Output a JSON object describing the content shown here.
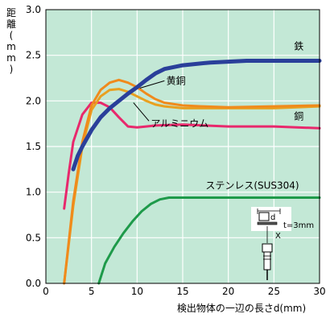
{
  "chart_data": {
    "type": "line",
    "xlabel": "検出物体の一辺の長さd(mm)",
    "ylabel_chars": [
      "距",
      "離",
      "(",
      "m",
      "m",
      ")"
    ],
    "x_ticks": [
      0,
      5,
      10,
      15,
      20,
      25,
      30
    ],
    "y_ticks": [
      "0.0",
      "0.5",
      "1.0",
      "1.5",
      "2.0",
      "2.5",
      "3.0"
    ],
    "xlim": [
      0,
      30
    ],
    "ylim": [
      0,
      3.0
    ],
    "grid": true,
    "plot_background": "#c3e8d6",
    "grid_color": "#ffffff",
    "series": [
      {
        "name": "鉄",
        "color": "#2a3f9a",
        "x": [
          3,
          3.5,
          4,
          5,
          6,
          7,
          8,
          9,
          10,
          11,
          12,
          13,
          15,
          18,
          20,
          22,
          25,
          28,
          30
        ],
        "y": [
          1.25,
          1.4,
          1.5,
          1.68,
          1.82,
          1.92,
          2.0,
          2.08,
          2.15,
          2.23,
          2.3,
          2.35,
          2.39,
          2.42,
          2.43,
          2.44,
          2.44,
          2.44,
          2.44
        ]
      },
      {
        "name": "黄銅",
        "color": "#f08a1c",
        "x": [
          2,
          3,
          4,
          5,
          6,
          7,
          8,
          9,
          10,
          11,
          12,
          13,
          15,
          17,
          20,
          25,
          30
        ],
        "y": [
          0.0,
          0.9,
          1.55,
          1.95,
          2.12,
          2.2,
          2.23,
          2.2,
          2.15,
          2.08,
          2.02,
          1.98,
          1.95,
          1.94,
          1.93,
          1.94,
          1.95
        ]
      },
      {
        "name": "アルミニウム",
        "color": "#e8a020",
        "x": [
          2,
          3,
          4,
          5,
          6,
          7,
          8,
          9,
          10,
          11,
          12,
          13,
          15,
          17,
          20,
          25,
          30
        ],
        "y": [
          0.0,
          0.85,
          1.5,
          1.9,
          2.05,
          2.12,
          2.13,
          2.1,
          2.05,
          2.0,
          1.96,
          1.94,
          1.92,
          1.92,
          1.92,
          1.92,
          1.94
        ]
      },
      {
        "name": "銅",
        "color": "#e8286c",
        "x": [
          2,
          2.5,
          3,
          4,
          5,
          6,
          7,
          8,
          9,
          10,
          11,
          12,
          15,
          20,
          25,
          30
        ],
        "y": [
          0.82,
          1.2,
          1.55,
          1.85,
          1.98,
          1.98,
          1.93,
          1.82,
          1.72,
          1.71,
          1.72,
          1.73,
          1.74,
          1.72,
          1.72,
          1.7
        ]
      },
      {
        "name": "ステンレス(SUS304)",
        "color": "#1e9a4a",
        "x": [
          5.8,
          6.5,
          7.5,
          8.5,
          9.5,
          10.5,
          11.5,
          12.5,
          13.5,
          15,
          17,
          20,
          25,
          30
        ],
        "y": [
          0.0,
          0.22,
          0.4,
          0.55,
          0.68,
          0.79,
          0.87,
          0.92,
          0.94,
          0.94,
          0.94,
          0.94,
          0.94,
          0.94
        ]
      }
    ],
    "series_labels": [
      {
        "key": "tetsu",
        "text": "鉄"
      },
      {
        "key": "oudou",
        "text": "黄銅"
      },
      {
        "key": "alu",
        "text": "アルミニウム"
      },
      {
        "key": "dou",
        "text": "銅"
      },
      {
        "key": "sus",
        "text": "ステンレス(SUS304)"
      }
    ],
    "inset": {
      "label_d": "d",
      "label_t": "t=3mm",
      "label_x": "X"
    }
  }
}
